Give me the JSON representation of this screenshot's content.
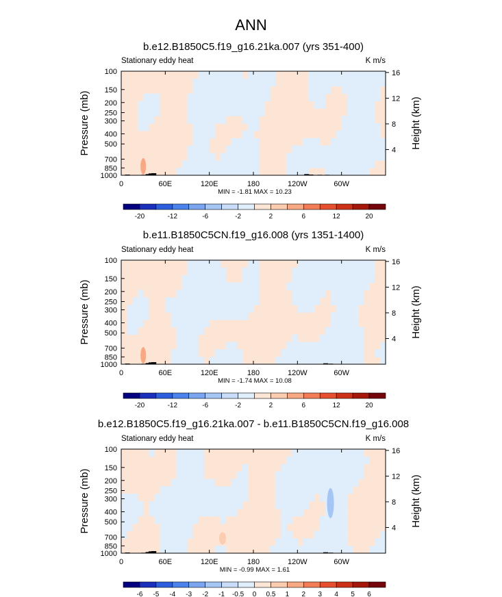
{
  "page_title": "ANN",
  "chart_data": [
    {
      "type": "heatmap",
      "title": "b.e12.B1850C5.f19_g16.21ka.007 (yrs 351-400)",
      "left_label": "Stationary eddy heat",
      "units": "K m/s",
      "ylabel": "Pressure (mb)",
      "y2label": "Height (km)",
      "x_ticks": [
        "0",
        "60E",
        "120E",
        "180",
        "120W",
        "60W"
      ],
      "x_tick_values": [
        0,
        60,
        120,
        180,
        240,
        300
      ],
      "xlim": [
        0,
        360
      ],
      "y_ticks": [
        "100",
        "150",
        "200",
        "250",
        "300",
        "400",
        "500",
        "700",
        "850",
        "1000"
      ],
      "y_tick_values": [
        100,
        150,
        200,
        250,
        300,
        400,
        500,
        700,
        850,
        1000
      ],
      "ylim": [
        1000,
        100
      ],
      "y2_ticks": [
        "4",
        "8",
        "12",
        "16"
      ],
      "y2_tick_values": [
        4,
        8,
        12,
        16
      ],
      "stats": "MIN =  -1.81  MAX =  10.23",
      "contour_levels": [
        -24,
        -20,
        -16,
        -12,
        -8,
        -6,
        -4,
        -2,
        0,
        2,
        4,
        6,
        8,
        12,
        16,
        20,
        24
      ],
      "colorbar_labels": [
        "-20",
        "-12",
        "-6",
        "-2",
        "2",
        "6",
        "12",
        "20"
      ],
      "colorbar_label_values": [
        -20,
        -12,
        -6,
        -2,
        2,
        6,
        12,
        20
      ],
      "topography_lon": [
        8,
        30,
        36,
        40,
        44,
        252,
        258,
        270,
        280
      ],
      "topography_p": [
        985,
        990,
        975,
        960,
        955,
        975,
        985,
        990,
        990
      ]
    },
    {
      "type": "heatmap",
      "title": "b.e11.B1850C5CN.f19_g16.008 (yrs 1351-1400)",
      "left_label": "Stationary eddy heat",
      "units": "K m/s",
      "ylabel": "Pressure (mb)",
      "y2label": "Height (km)",
      "x_ticks": [
        "0",
        "60E",
        "120E",
        "180",
        "120W",
        "60W"
      ],
      "x_tick_values": [
        0,
        60,
        120,
        180,
        240,
        300
      ],
      "xlim": [
        0,
        360
      ],
      "y_ticks": [
        "100",
        "150",
        "200",
        "250",
        "300",
        "400",
        "500",
        "700",
        "850",
        "1000"
      ],
      "y_tick_values": [
        100,
        150,
        200,
        250,
        300,
        400,
        500,
        700,
        850,
        1000
      ],
      "ylim": [
        1000,
        100
      ],
      "y2_ticks": [
        "4",
        "8",
        "12",
        "16"
      ],
      "y2_tick_values": [
        4,
        8,
        12,
        16
      ],
      "stats": "MIN =  -1.74  MAX =  10.08",
      "contour_levels": [
        -24,
        -20,
        -16,
        -12,
        -8,
        -6,
        -4,
        -2,
        0,
        2,
        4,
        6,
        8,
        12,
        16,
        20,
        24
      ],
      "colorbar_labels": [
        "-20",
        "-12",
        "-6",
        "-2",
        "2",
        "6",
        "12",
        "20"
      ],
      "colorbar_label_values": [
        -20,
        -12,
        -6,
        -2,
        2,
        6,
        12,
        20
      ],
      "topography_lon": [
        8,
        30,
        36,
        40,
        44,
        100,
        130,
        278,
        285
      ],
      "topography_p": [
        985,
        990,
        975,
        960,
        955,
        993,
        993,
        980,
        988
      ]
    },
    {
      "type": "heatmap",
      "title": "b.e12.B1850C5.f19_g16.21ka.007 - b.e11.B1850C5CN.f19_g16.008",
      "left_label": "Stationary eddy heat",
      "units": "K m/s",
      "ylabel": "Pressure (mb)",
      "y2label": "Height (km)",
      "x_ticks": [
        "0",
        "60E",
        "120E",
        "180",
        "120W",
        "60W"
      ],
      "x_tick_values": [
        0,
        60,
        120,
        180,
        240,
        300
      ],
      "xlim": [
        0,
        360
      ],
      "y_ticks": [
        "100",
        "150",
        "200",
        "250",
        "300",
        "400",
        "500",
        "700",
        "850",
        "1000"
      ],
      "y_tick_values": [
        100,
        150,
        200,
        250,
        300,
        400,
        500,
        700,
        850,
        1000
      ],
      "ylim": [
        1000,
        100
      ],
      "y2_ticks": [
        "4",
        "8",
        "12",
        "16"
      ],
      "y2_tick_values": [
        4,
        8,
        12,
        16
      ],
      "stats": "MIN =  -0.99  MAX =  1.61",
      "contour_levels": [
        -7,
        -6,
        -5,
        -4,
        -3,
        -2,
        -1,
        -0.5,
        0,
        0.5,
        1,
        2,
        3,
        4,
        5,
        6,
        7
      ],
      "colorbar_labels": [
        "-6",
        "-5",
        "-4",
        "-3",
        "-2",
        "-1",
        "-0.5",
        "0",
        "0.5",
        "1",
        "2",
        "3",
        "4",
        "5",
        "6"
      ],
      "colorbar_label_values": [
        -6,
        -5,
        -4,
        -3,
        -2,
        -1,
        -0.5,
        0,
        0.5,
        1,
        2,
        3,
        4,
        5,
        6
      ],
      "topography_lon": [
        8,
        30,
        36,
        40,
        44,
        100,
        130,
        278,
        285
      ],
      "topography_p": [
        985,
        990,
        975,
        960,
        955,
        993,
        993,
        980,
        988
      ]
    }
  ],
  "colorbar_colors": [
    "#04007e",
    "#1b2fbd",
    "#2d5fdc",
    "#4a83ea",
    "#7aa6f0",
    "#a5c5f5",
    "#c9dcf8",
    "#e0edfb",
    "#fde5d5",
    "#fcccb0",
    "#f8a883",
    "#f27c55",
    "#e6502f",
    "#cd3117",
    "#a5180c",
    "#74050a"
  ]
}
